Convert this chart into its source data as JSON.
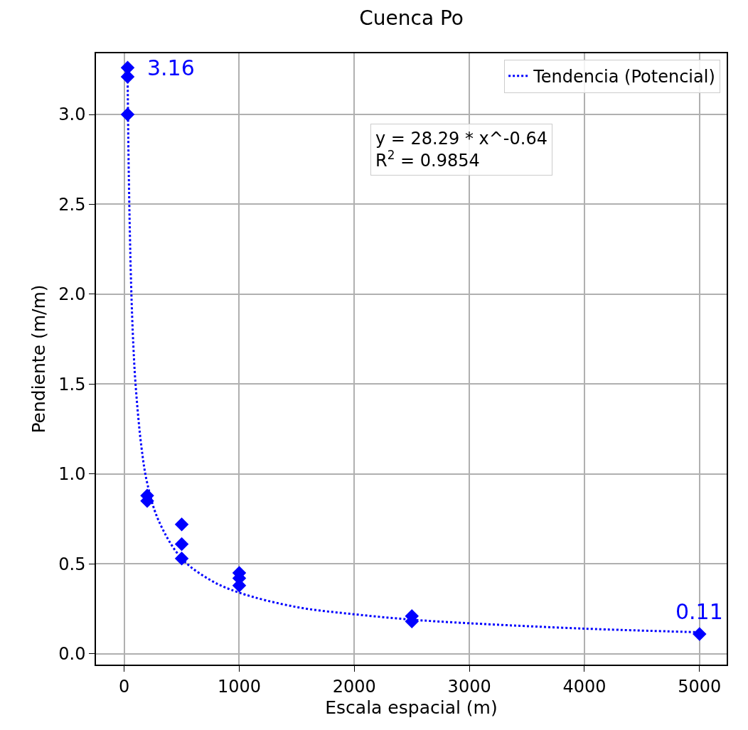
{
  "chart_data": {
    "type": "scatter",
    "title": "Cuenca Po",
    "xlabel": "Escala espacial (m)",
    "ylabel": "Pendiente (m/m)",
    "xlim": [
      -245,
      5236
    ],
    "ylim": [
      -0.06,
      3.34
    ],
    "xticks": [
      0,
      1000,
      2000,
      3000,
      4000,
      5000
    ],
    "yticks": [
      {
        "value": 0,
        "label": "0.0"
      },
      {
        "value": 0.5,
        "label": "0.5"
      },
      {
        "value": 1,
        "label": "1.0"
      },
      {
        "value": 1.5,
        "label": "1.5"
      },
      {
        "value": 2,
        "label": "2.0"
      },
      {
        "value": 2.5,
        "label": "2.5"
      },
      {
        "value": 3,
        "label": "3.0"
      }
    ],
    "grid": true,
    "legend": "top right",
    "series": [
      {
        "marker": "diamond",
        "color": "#0000ff",
        "x": [
          30,
          30,
          30,
          200,
          200,
          500,
          500,
          500,
          1000,
          1000,
          1000,
          2500,
          2500,
          5000
        ],
        "values": [
          3.26,
          3.21,
          3.0,
          0.88,
          0.85,
          0.72,
          0.61,
          0.53,
          0.45,
          0.42,
          0.38,
          0.21,
          0.18,
          0.11
        ]
      },
      {
        "type": "line",
        "marker": "none",
        "name": "Tendencia (Potencial)",
        "color": "#0000ff",
        "line_style": "dotted",
        "x": [
          29,
          40,
          60,
          80,
          100,
          150,
          200,
          300,
          500,
          750,
          1000,
          1500,
          2000,
          2500,
          3000,
          4000,
          5000
        ],
        "values": [
          3.28,
          2.67,
          2.06,
          1.71,
          1.49,
          1.15,
          0.95,
          0.74,
          0.53,
          0.41,
          0.34,
          0.26,
          0.22,
          0.19,
          0.17,
          0.14,
          0.12
        ]
      }
    ],
    "annotations": [
      {
        "text": "3.16",
        "x": 30,
        "y": 3.26
      },
      {
        "text": "0.11",
        "x": 5000,
        "y": 0.11
      },
      "y = 28.29 * x^-0.64",
      "R$^{2}$ = 0.9854"
    ]
  }
}
